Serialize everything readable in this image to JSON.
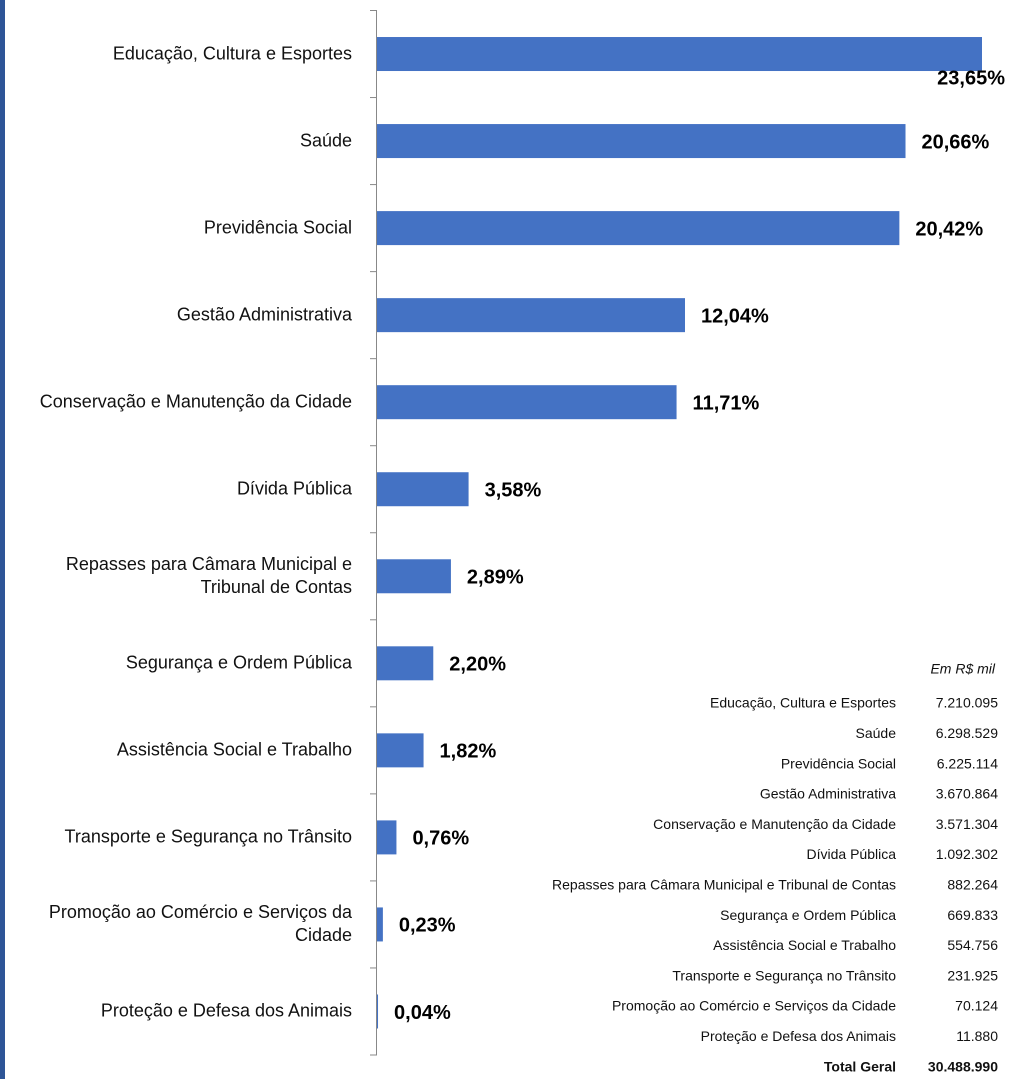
{
  "chart_data": {
    "type": "barh",
    "categories": [
      "Educação, Cultura e Esportes",
      "Saúde",
      "Previdência Social",
      "Gestão Administrativa",
      "Conservação e Manutenção da Cidade",
      "Dívida Pública",
      "Repasses para Câmara Municipal e Tribunal de Contas",
      "Segurança e Ordem Pública",
      "Assistência Social e Trabalho",
      "Transporte e Segurança no Trânsito",
      "Promoção ao Comércio e Serviços da Cidade",
      "Proteção e Defesa dos Animais"
    ],
    "values": [
      23.65,
      20.66,
      20.42,
      12.04,
      11.71,
      3.58,
      2.89,
      2.2,
      1.82,
      0.76,
      0.23,
      0.04
    ],
    "value_labels": [
      "23,65%",
      "20,66%",
      "20,42%",
      "12,04%",
      "11,71%",
      "3,58%",
      "2,89%",
      "2,20%",
      "1,82%",
      "0,76%",
      "0,23%",
      "0,04%"
    ],
    "color": "#4472c4"
  },
  "table": {
    "note": "Em R$ mil",
    "rows": [
      [
        "Educação, Cultura e Esportes",
        "7.210.095"
      ],
      [
        "Saúde",
        "6.298.529"
      ],
      [
        "Previdência Social",
        "6.225.114"
      ],
      [
        "Gestão Administrativa",
        "3.670.864"
      ],
      [
        "Conservação e Manutenção da Cidade",
        "3.571.304"
      ],
      [
        "Dívida Pública",
        "1.092.302"
      ],
      [
        "Repasses para Câmara Municipal e Tribunal de Contas",
        "882.264"
      ],
      [
        "Segurança e Ordem Pública",
        "669.833"
      ],
      [
        "Assistência Social e Trabalho",
        "554.756"
      ],
      [
        "Transporte e Segurança no Trânsito",
        "231.925"
      ],
      [
        "Promoção ao Comércio e Serviços da Cidade",
        "70.124"
      ],
      [
        "Proteção e Defesa dos Animais",
        "11.880"
      ]
    ],
    "total": [
      "Total Geral",
      "30.488.990"
    ]
  }
}
